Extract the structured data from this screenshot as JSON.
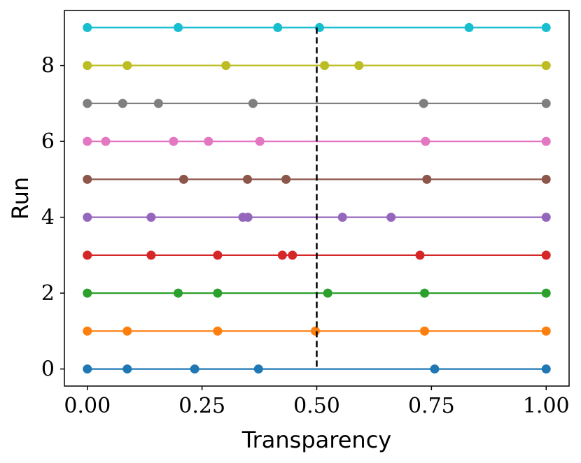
{
  "chart_data": {
    "type": "scatter",
    "title": "",
    "xlabel": "Transparency",
    "ylabel": "Run",
    "xlim": [
      -0.05,
      1.05
    ],
    "ylim": [
      -0.45,
      9.45
    ],
    "x_ticks": [
      {
        "value": 0.0,
        "label": "0.00"
      },
      {
        "value": 0.25,
        "label": "0.25"
      },
      {
        "value": 0.5,
        "label": "0.50"
      },
      {
        "value": 0.75,
        "label": "0.75"
      },
      {
        "value": 1.0,
        "label": "1.00"
      }
    ],
    "y_ticks": [
      {
        "value": 0,
        "label": "0"
      },
      {
        "value": 2,
        "label": "2"
      },
      {
        "value": 4,
        "label": "4"
      },
      {
        "value": 6,
        "label": "6"
      },
      {
        "value": 8,
        "label": "8"
      }
    ],
    "grid": false,
    "threshold": {
      "x": 0.5,
      "style": "dashed",
      "color": "#000000"
    },
    "series": [
      {
        "run": 0,
        "color": "#1f77b4",
        "x": [
          0.0,
          0.087,
          0.234,
          0.373,
          0.757,
          1.0
        ]
      },
      {
        "run": 1,
        "color": "#ff7f0e",
        "x": [
          0.0,
          0.087,
          0.284,
          0.497,
          0.735,
          1.0
        ]
      },
      {
        "run": 2,
        "color": "#2ca02c",
        "x": [
          0.0,
          0.198,
          0.284,
          0.524,
          0.735,
          1.0
        ]
      },
      {
        "run": 3,
        "color": "#d62728",
        "x": [
          0.0,
          0.139,
          0.284,
          0.425,
          0.447,
          0.725,
          1.0
        ]
      },
      {
        "run": 4,
        "color": "#9467bd",
        "x": [
          0.0,
          0.139,
          0.339,
          0.35,
          0.556,
          0.662,
          1.0
        ]
      },
      {
        "run": 5,
        "color": "#8c564b",
        "x": [
          0.0,
          0.21,
          0.349,
          0.433,
          0.74,
          1.0
        ]
      },
      {
        "run": 6,
        "color": "#e377c2",
        "x": [
          0.0,
          0.04,
          0.188,
          0.264,
          0.376,
          0.737,
          1.0
        ]
      },
      {
        "run": 7,
        "color": "#7f7f7f",
        "x": [
          0.0,
          0.077,
          0.155,
          0.361,
          0.733,
          1.0
        ]
      },
      {
        "run": 8,
        "color": "#bcbd22",
        "x": [
          0.0,
          0.087,
          0.302,
          0.517,
          0.592,
          1.0
        ]
      },
      {
        "run": 9,
        "color": "#17becf",
        "x": [
          0.0,
          0.198,
          0.415,
          0.506,
          0.832,
          1.0
        ]
      }
    ]
  }
}
